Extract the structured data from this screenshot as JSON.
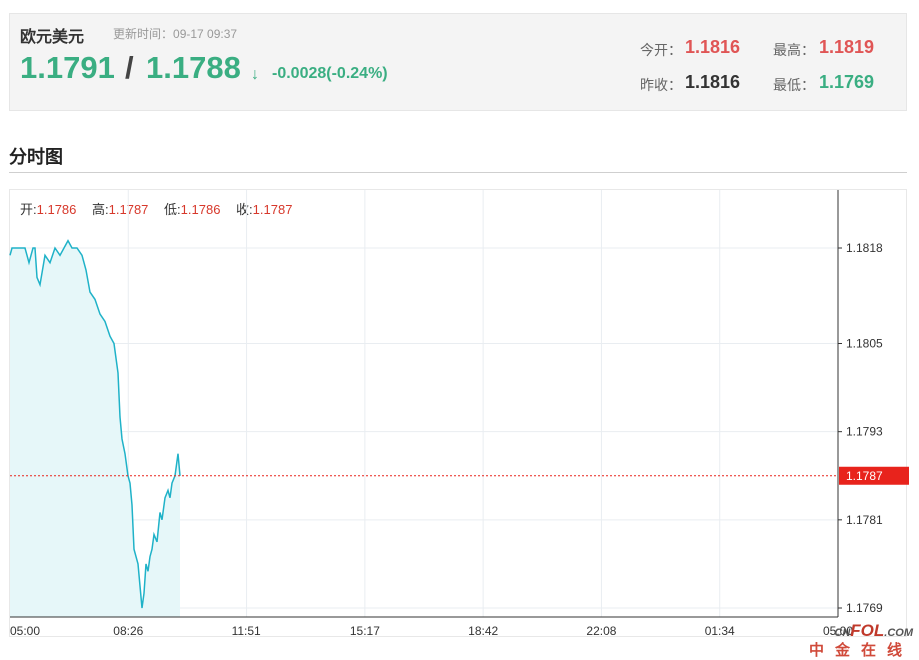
{
  "header": {
    "symbol": "欧元美元",
    "update_label": "更新时间：",
    "update_time": "09-17 09:37",
    "bid": "1.1791",
    "slash": "/",
    "ask": "1.1788",
    "direction_icon": "arrow-down-icon",
    "direction_glyph": "↓",
    "change": "-0.0028(-0.24%)"
  },
  "stats": {
    "open_label": "今开：",
    "open_value": "1.1816",
    "high_label": "最高：",
    "high_value": "1.1819",
    "prev_close_label": "昨收：",
    "prev_close_value": "1.1816",
    "low_label": "最低：",
    "low_value": "1.1769"
  },
  "colors": {
    "up": "#e05555",
    "down": "#3aae82",
    "line": "#1fb2c8",
    "area": "#e6f7f9",
    "current_marker": "#e8231c"
  },
  "section": {
    "title": "分时图"
  },
  "ohlc": {
    "open_label": "开:",
    "open_value": "1.1786",
    "high_label": "高:",
    "high_value": "1.1787",
    "low_label": "低:",
    "low_value": "1.1786",
    "close_label": "收:",
    "close_value": "1.1787"
  },
  "chart_data": {
    "type": "area",
    "x_tick_labels": [
      "05:00",
      "08:26",
      "11:51",
      "15:17",
      "18:42",
      "22:08",
      "01:34",
      "05:00"
    ],
    "y_tick_labels": [
      "1.1818",
      "1.1805",
      "1.1793",
      "1.1781",
      "1.1769"
    ],
    "ylim": [
      1.1769,
      1.1818
    ],
    "current_price": 1.1787,
    "current_price_label": "1.1787",
    "grid": true,
    "x": [
      0,
      2,
      5,
      8,
      11,
      15,
      19,
      23,
      25,
      27,
      30,
      35,
      40,
      45,
      50,
      54,
      58,
      62,
      67,
      72,
      76,
      80,
      85,
      90,
      95,
      100,
      104,
      108,
      110,
      112,
      115,
      118,
      120,
      122,
      124,
      126,
      128,
      130,
      132,
      134,
      136,
      138,
      140,
      142,
      144,
      147,
      150,
      152,
      155,
      158,
      160,
      162,
      165,
      168,
      170
    ],
    "values": [
      1.1817,
      1.1818,
      1.1818,
      1.1818,
      1.1818,
      1.1818,
      1.1816,
      1.1818,
      1.1818,
      1.1814,
      1.1813,
      1.1817,
      1.1816,
      1.1818,
      1.1817,
      1.1818,
      1.1819,
      1.1818,
      1.1818,
      1.1817,
      1.1815,
      1.1812,
      1.1811,
      1.1809,
      1.1808,
      1.1806,
      1.1805,
      1.1801,
      1.1795,
      1.1792,
      1.179,
      1.1787,
      1.1786,
      1.1783,
      1.1777,
      1.1776,
      1.1775,
      1.1772,
      1.1769,
      1.1771,
      1.1775,
      1.1774,
      1.1776,
      1.1777,
      1.1779,
      1.1778,
      1.1782,
      1.1781,
      1.1784,
      1.1785,
      1.1784,
      1.1786,
      1.1787,
      1.179,
      1.1787
    ]
  },
  "watermark": {
    "prefix": "CN",
    "brand": "FOL",
    "suffix": ".COM",
    "sub": "中金在线"
  }
}
